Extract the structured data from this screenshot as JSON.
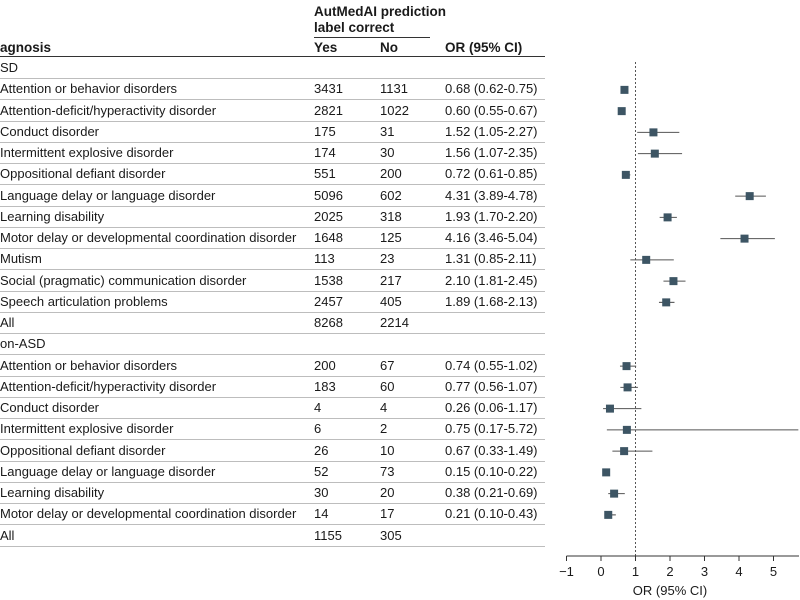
{
  "headers": {
    "group_line1": "AutMedAI prediction",
    "group_line2": "label correct",
    "diagnosis": "agnosis",
    "yes": "Yes",
    "no": "No",
    "or": "OR (95% CI)"
  },
  "chart_data": {
    "type": "forest",
    "xlabel": "OR (95% CI)",
    "xlim": [
      -1,
      5.8
    ],
    "xticks": [
      -1,
      0,
      1,
      2,
      3,
      4,
      5
    ],
    "reference_line": 1,
    "rows": [
      {
        "kind": "group",
        "label": "SD"
      },
      {
        "kind": "item",
        "label": "Attention or behavior disorders",
        "yes": "3431",
        "no": "1131",
        "or_text": "0.68 (0.62-0.75)",
        "or": 0.68,
        "lo": 0.62,
        "hi": 0.75
      },
      {
        "kind": "item",
        "label": "Attention-deficit/hyperactivity disorder",
        "yes": "2821",
        "no": "1022",
        "or_text": "0.60 (0.55-0.67)",
        "or": 0.6,
        "lo": 0.55,
        "hi": 0.67
      },
      {
        "kind": "item",
        "label": "Conduct disorder",
        "yes": "175",
        "no": "31",
        "or_text": "1.52 (1.05-2.27)",
        "or": 1.52,
        "lo": 1.05,
        "hi": 2.27
      },
      {
        "kind": "item",
        "label": "Intermittent explosive disorder",
        "yes": "174",
        "no": "30",
        "or_text": "1.56 (1.07-2.35)",
        "or": 1.56,
        "lo": 1.07,
        "hi": 2.35
      },
      {
        "kind": "item",
        "label": "Oppositional defiant disorder",
        "yes": "551",
        "no": "200",
        "or_text": "0.72 (0.61-0.85)",
        "or": 0.72,
        "lo": 0.61,
        "hi": 0.85
      },
      {
        "kind": "item",
        "label": "Language delay or language disorder",
        "yes": "5096",
        "no": "602",
        "or_text": "4.31 (3.89-4.78)",
        "or": 4.31,
        "lo": 3.89,
        "hi": 4.78
      },
      {
        "kind": "item",
        "label": "Learning disability",
        "yes": "2025",
        "no": "318",
        "or_text": "1.93 (1.70-2.20)",
        "or": 1.93,
        "lo": 1.7,
        "hi": 2.2
      },
      {
        "kind": "item",
        "label": "Motor delay or developmental coordination disorder",
        "yes": "1648",
        "no": "125",
        "or_text": "4.16 (3.46-5.04)",
        "or": 4.16,
        "lo": 3.46,
        "hi": 5.04
      },
      {
        "kind": "item",
        "label": "Mutism",
        "yes": "113",
        "no": "23",
        "or_text": "1.31 (0.85-2.11)",
        "or": 1.31,
        "lo": 0.85,
        "hi": 2.11
      },
      {
        "kind": "item",
        "label": "Social (pragmatic) communication disorder",
        "yes": "1538",
        "no": "217",
        "or_text": "2.10 (1.81-2.45)",
        "or": 2.1,
        "lo": 1.81,
        "hi": 2.45
      },
      {
        "kind": "item",
        "label": "Speech articulation problems",
        "yes": "2457",
        "no": "405",
        "or_text": "1.89 (1.68-2.13)",
        "or": 1.89,
        "lo": 1.68,
        "hi": 2.13
      },
      {
        "kind": "item",
        "label": "All",
        "yes": "8268",
        "no": "2214",
        "or_text": "",
        "or": null,
        "lo": null,
        "hi": null
      },
      {
        "kind": "group",
        "label": "on-ASD"
      },
      {
        "kind": "item",
        "label": "Attention or behavior disorders",
        "yes": "200",
        "no": "67",
        "or_text": "0.74 (0.55-1.02)",
        "or": 0.74,
        "lo": 0.55,
        "hi": 1.02
      },
      {
        "kind": "item",
        "label": "Attention-deficit/hyperactivity disorder",
        "yes": "183",
        "no": "60",
        "or_text": "0.77 (0.56-1.07)",
        "or": 0.77,
        "lo": 0.56,
        "hi": 1.07
      },
      {
        "kind": "item",
        "label": "Conduct disorder",
        "yes": "4",
        "no": "4",
        "or_text": "0.26 (0.06-1.17)",
        "or": 0.26,
        "lo": 0.06,
        "hi": 1.17
      },
      {
        "kind": "item",
        "label": "Intermittent explosive disorder",
        "yes": "6",
        "no": "2",
        "or_text": "0.75 (0.17-5.72)",
        "or": 0.75,
        "lo": 0.17,
        "hi": 5.72
      },
      {
        "kind": "item",
        "label": "Oppositional defiant disorder",
        "yes": "26",
        "no": "10",
        "or_text": "0.67 (0.33-1.49)",
        "or": 0.67,
        "lo": 0.33,
        "hi": 1.49
      },
      {
        "kind": "item",
        "label": "Language delay or language disorder",
        "yes": "52",
        "no": "73",
        "or_text": "0.15 (0.10-0.22)",
        "or": 0.15,
        "lo": 0.1,
        "hi": 0.22
      },
      {
        "kind": "item",
        "label": "Learning disability",
        "yes": "30",
        "no": "20",
        "or_text": "0.38 (0.21-0.69)",
        "or": 0.38,
        "lo": 0.21,
        "hi": 0.69
      },
      {
        "kind": "item",
        "label": "Motor delay or developmental coordination disorder",
        "yes": "14",
        "no": "17",
        "or_text": "0.21 (0.10-0.43)",
        "or": 0.21,
        "lo": 0.1,
        "hi": 0.43
      },
      {
        "kind": "item",
        "label": "All",
        "yes": "1155",
        "no": "305",
        "or_text": "",
        "or": null,
        "lo": null,
        "hi": null
      }
    ],
    "colors": {
      "marker": "#3d5564",
      "ci_line": "#555555",
      "axis": "#333333",
      "ref_line": "#555555"
    }
  }
}
